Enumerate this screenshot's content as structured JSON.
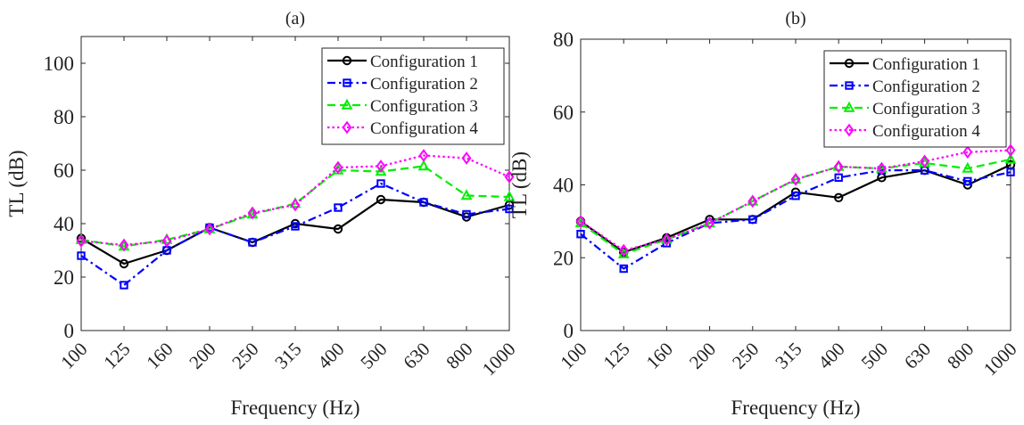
{
  "chart_data": [
    {
      "type": "line",
      "title": "(a)",
      "xlabel": "Frequency (Hz)",
      "ylabel": "TL (dB)",
      "categories": [
        "100",
        "125",
        "160",
        "200",
        "250",
        "315",
        "400",
        "500",
        "630",
        "800",
        "1000"
      ],
      "ylim": [
        0,
        110
      ],
      "yticks": [
        0,
        20,
        40,
        60,
        80,
        100
      ],
      "grid": false,
      "legend_position": "top-right",
      "series": [
        {
          "name": "Configuration 1",
          "color": "#000000",
          "marker": "circle",
          "line": "solid",
          "values": [
            34.5,
            25,
            30,
            38.5,
            33,
            40,
            38,
            49,
            48,
            42.5,
            47
          ]
        },
        {
          "name": "Configuration 2",
          "color": "#0000ff",
          "marker": "square",
          "line": "dashdot",
          "values": [
            28,
            17,
            30,
            38.5,
            33,
            39,
            46,
            55,
            48,
            43.5,
            45.5
          ]
        },
        {
          "name": "Configuration 3",
          "color": "#00ee00",
          "marker": "triangle",
          "line": "dashed",
          "values": [
            34,
            31.5,
            34,
            38,
            43.5,
            47.5,
            60,
            59.5,
            61.5,
            50.5,
            50
          ]
        },
        {
          "name": "Configuration 4",
          "color": "#ff00ff",
          "marker": "diamond",
          "line": "dotted",
          "values": [
            33.5,
            32,
            33.5,
            38,
            44,
            47,
            61,
            61.5,
            65.5,
            64.5,
            57.5
          ]
        }
      ]
    },
    {
      "type": "line",
      "title": "(b)",
      "xlabel": "Frequency (Hz)",
      "ylabel": "TL (dB)",
      "categories": [
        "100",
        "125",
        "160",
        "200",
        "250",
        "315",
        "400",
        "500",
        "630",
        "800",
        "1000"
      ],
      "ylim": [
        0,
        80
      ],
      "yticks": [
        0,
        20,
        40,
        60,
        80
      ],
      "grid": false,
      "legend_position": "top-right",
      "series": [
        {
          "name": "Configuration 1",
          "color": "#000000",
          "marker": "circle",
          "line": "solid",
          "values": [
            30,
            21.5,
            25.5,
            30.5,
            30.5,
            38,
            36.5,
            42,
            44,
            40,
            45.5
          ]
        },
        {
          "name": "Configuration 2",
          "color": "#0000ff",
          "marker": "square",
          "line": "dashdot",
          "values": [
            26.5,
            17,
            24,
            29.5,
            30.5,
            37,
            42,
            44,
            44,
            41,
            43.5
          ]
        },
        {
          "name": "Configuration 3",
          "color": "#00ee00",
          "marker": "triangle",
          "line": "dashed",
          "values": [
            29.5,
            21,
            25,
            29.5,
            35.5,
            41.5,
            45,
            44.5,
            46,
            44.5,
            47
          ]
        },
        {
          "name": "Configuration 4",
          "color": "#ff00ff",
          "marker": "diamond",
          "line": "dotted",
          "values": [
            30,
            22,
            25,
            29.5,
            35.5,
            41.5,
            45,
            44.5,
            46.5,
            49,
            49.5
          ]
        }
      ]
    }
  ]
}
